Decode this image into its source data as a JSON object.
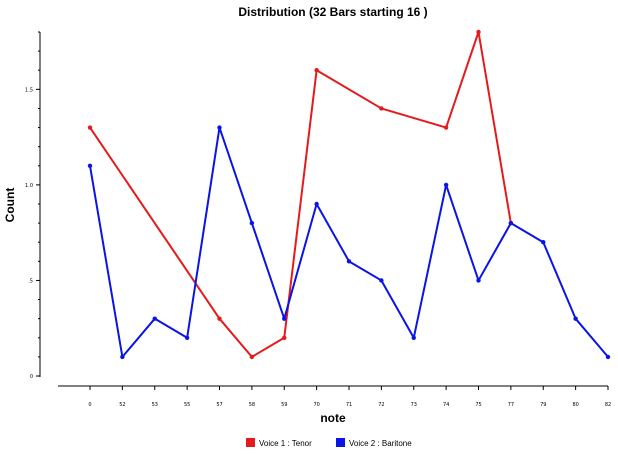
{
  "chart_data": {
    "type": "line",
    "title": "Distribution (32 Bars starting 16 )",
    "xlabel": "note",
    "ylabel": "Count",
    "x_ticks": [
      "0",
      "52",
      "53",
      "55",
      "57",
      "58",
      "59",
      "70",
      "71",
      "72",
      "73",
      "74",
      "75",
      "77",
      "79",
      "80",
      "82"
    ],
    "y_ticks": [
      {
        "value": 0,
        "label": "0"
      },
      {
        "value": 0.5,
        "label": ".5"
      },
      {
        "value": 1.0,
        "label": "1.0"
      },
      {
        "value": 1.5,
        "label": "1.5"
      }
    ],
    "ylim": [
      0,
      1.8
    ],
    "grid": false,
    "legend_position": "bottom-center",
    "series": [
      {
        "name": "Voice 1 : Tenor",
        "color": "#e41a1c",
        "points": [
          {
            "x": "0",
            "y": 1.3
          },
          {
            "x": "57",
            "y": 0.3
          },
          {
            "x": "58",
            "y": 0.1
          },
          {
            "x": "59",
            "y": 0.2
          },
          {
            "x": "70",
            "y": 1.6
          },
          {
            "x": "72",
            "y": 1.4
          },
          {
            "x": "74",
            "y": 1.3
          },
          {
            "x": "75",
            "y": 1.8
          },
          {
            "x": "77",
            "y": 0.8
          }
        ]
      },
      {
        "name": "Voice 2 : Baritone",
        "color": "#0a14e6",
        "points": [
          {
            "x": "0",
            "y": 1.1
          },
          {
            "x": "52",
            "y": 0.1
          },
          {
            "x": "53",
            "y": 0.3
          },
          {
            "x": "55",
            "y": 0.2
          },
          {
            "x": "57",
            "y": 1.3
          },
          {
            "x": "58",
            "y": 0.8
          },
          {
            "x": "59",
            "y": 0.3
          },
          {
            "x": "70",
            "y": 0.9
          },
          {
            "x": "71",
            "y": 0.6
          },
          {
            "x": "72",
            "y": 0.5
          },
          {
            "x": "73",
            "y": 0.2
          },
          {
            "x": "74",
            "y": 1.0
          },
          {
            "x": "75",
            "y": 0.5
          },
          {
            "x": "77",
            "y": 0.8
          },
          {
            "x": "79",
            "y": 0.7
          },
          {
            "x": "80",
            "y": 0.3
          },
          {
            "x": "82",
            "y": 0.1
          }
        ]
      }
    ]
  }
}
